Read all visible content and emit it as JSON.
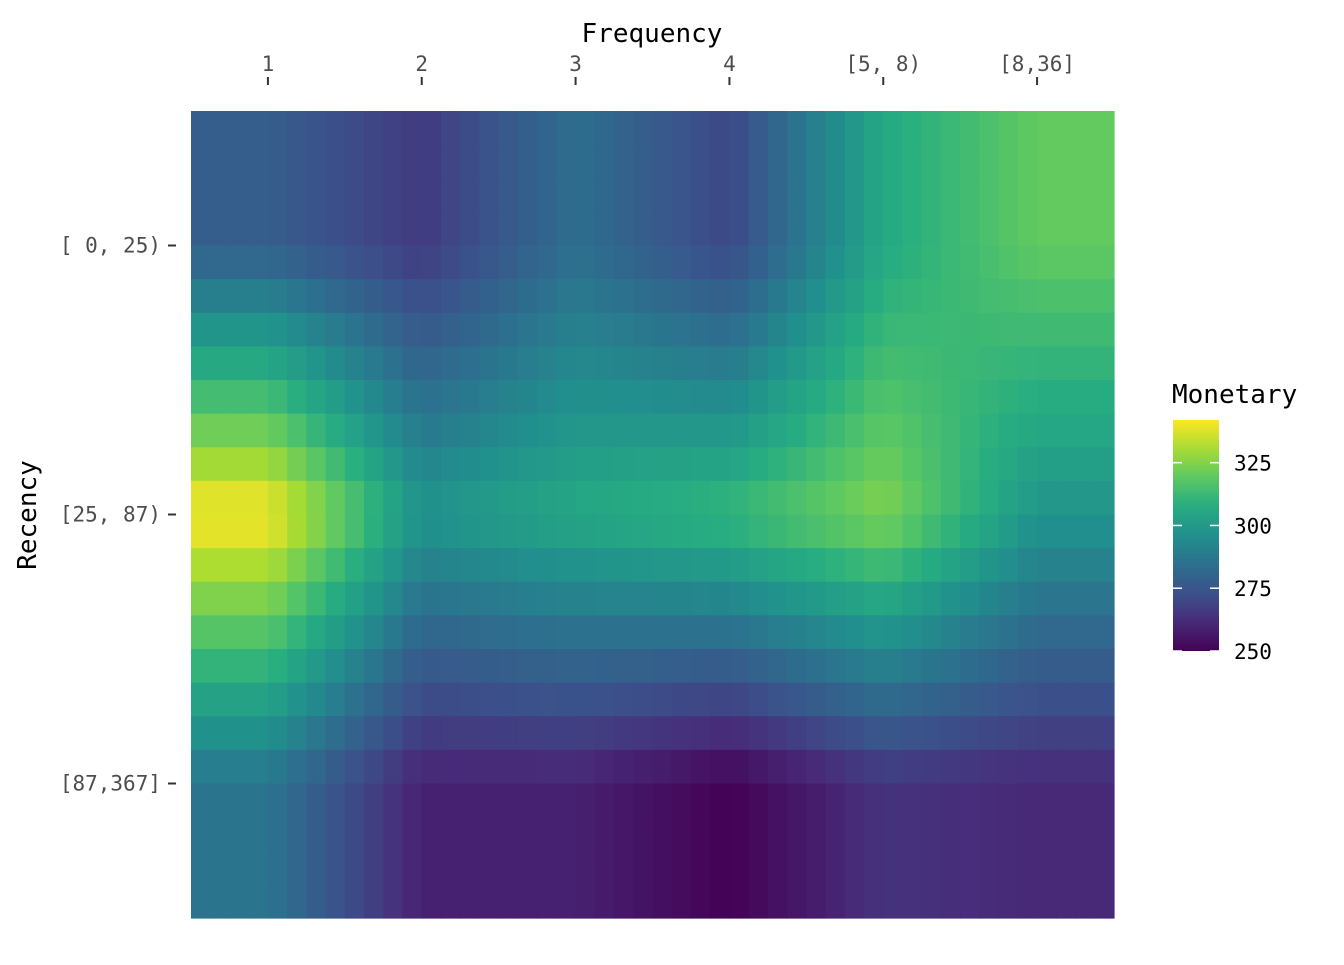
{
  "chart_data": {
    "type": "heatmap",
    "xlabel": "Frequency",
    "ylabel": "Recency",
    "x_categories": [
      "1",
      "2",
      "3",
      "4",
      "[5, 8)",
      "[8,36]"
    ],
    "y_categories": [
      "[ 0, 25)",
      "[25, 87)",
      "[87,367]"
    ],
    "values": [
      [
        278,
        266,
        284,
        270,
        306,
        320
      ],
      [
        342,
        298,
        306,
        312,
        325,
        298
      ],
      [
        286,
        259,
        259,
        250,
        264,
        261
      ]
    ],
    "interpolated": true,
    "legend": {
      "title": "Monetary",
      "ticks": [
        250,
        275,
        300,
        325
      ],
      "range": [
        250,
        342
      ],
      "colormap": "viridis",
      "placement": "right"
    },
    "x_axis_position": "top",
    "grid": false
  }
}
